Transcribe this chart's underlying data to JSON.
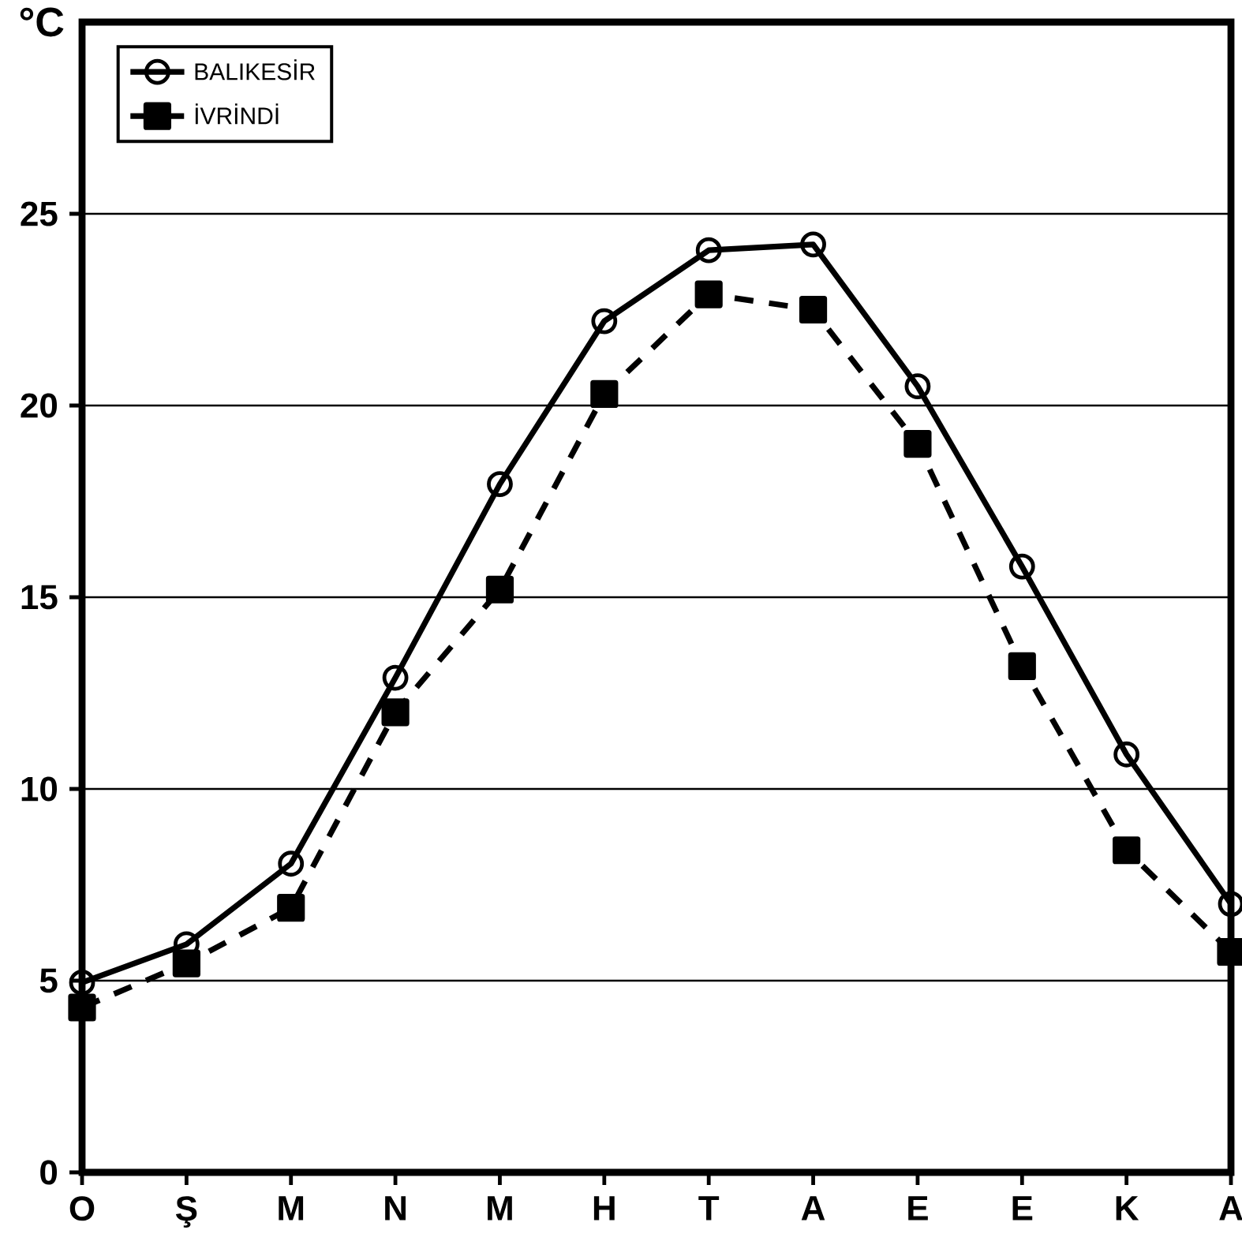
{
  "chart_data": {
    "type": "line",
    "ylabel": "°C",
    "categories": [
      "O",
      "Ş",
      "M",
      "N",
      "M",
      "H",
      "T",
      "A",
      "E",
      "E",
      "K",
      "A"
    ],
    "series": [
      {
        "name": "BALIKESİR",
        "color": "#000000",
        "marker": "circle",
        "line_style": "solid",
        "values": [
          4.95,
          5.95,
          8.05,
          12.9,
          17.95,
          22.2,
          24.05,
          24.2,
          20.5,
          15.8,
          10.9,
          7.0
        ]
      },
      {
        "name": "İVRİNDİ",
        "color": "#000000",
        "marker": "square",
        "line_style": "dashed",
        "values": [
          4.3,
          5.45,
          6.9,
          12.0,
          15.2,
          20.3,
          22.9,
          22.5,
          19.0,
          13.2,
          8.4,
          5.75
        ]
      }
    ],
    "ylim": [
      0,
      30
    ],
    "yticks": [
      0,
      5,
      10,
      15,
      20,
      25
    ],
    "grid": "y",
    "legend": "top left"
  }
}
